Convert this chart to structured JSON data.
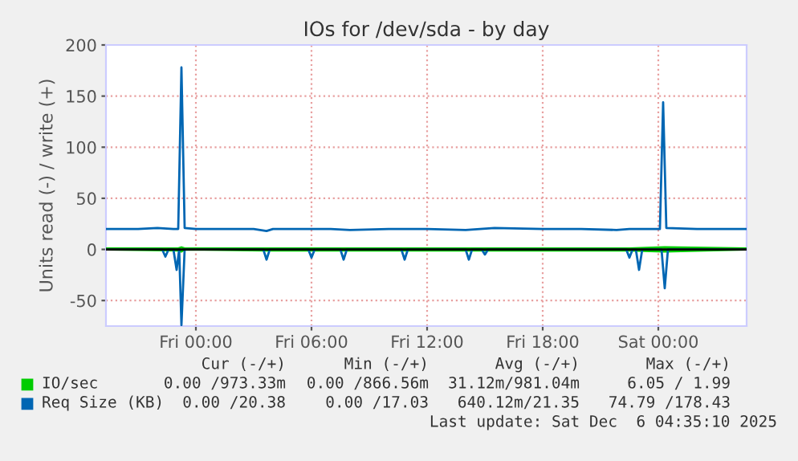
{
  "chart_data": {
    "type": "line",
    "title": "IOs for /dev/sda - by day",
    "ylabel": "Units read (-) / write (+)",
    "xlim": [
      "2025-12-04T19:20",
      "2025-12-06T04:35"
    ],
    "xticks": [
      {
        "value": "2025-12-05T00:00",
        "label": "Fri 00:00"
      },
      {
        "value": "2025-12-05T06:00",
        "label": "Fri 06:00"
      },
      {
        "value": "2025-12-05T12:00",
        "label": "Fri 12:00"
      },
      {
        "value": "2025-12-05T18:00",
        "label": "Fri 18:00"
      },
      {
        "value": "2025-12-06T00:00",
        "label": "Sat 00:00"
      }
    ],
    "ylim": [
      -75,
      200
    ],
    "yticks": [
      -50,
      0,
      50,
      100,
      150,
      200
    ],
    "grid": true,
    "legend": "bottom",
    "ref_lines": [
      {
        "axis": "y",
        "value": 0,
        "color": "#000000"
      }
    ],
    "series": [
      {
        "name": "IO/sec",
        "color": "#00cc00",
        "x": [
          "2025-12-04T19:20",
          "2025-12-04T23:05",
          "2025-12-04T23:15",
          "2025-12-04T23:25",
          "2025-12-05T03:40",
          "2025-12-05T10:50",
          "2025-12-05T22:30",
          "2025-12-06T00:20",
          "2025-12-06T04:35"
        ],
        "values": [
          1,
          1,
          2,
          1,
          1,
          1,
          1,
          2,
          1
        ]
      },
      {
        "color": "#00cc00",
        "x": [
          "2025-12-04T19:20",
          "2025-12-04T23:05",
          "2025-12-04T23:15",
          "2025-12-04T23:25",
          "2025-12-05T03:40",
          "2025-12-05T10:50",
          "2025-12-05T22:30",
          "2025-12-06T00:20",
          "2025-12-06T04:35"
        ],
        "values": [
          0,
          -1,
          -2,
          0,
          -1,
          -1,
          -1,
          -2,
          0
        ]
      },
      {
        "name": "Req Size (KB)",
        "color": "#0066b3",
        "x": [
          "2025-12-04T19:20",
          "2025-12-04T21:00",
          "2025-12-04T22:00",
          "2025-12-04T22:50",
          "2025-12-04T23:05",
          "2025-12-04T23:15",
          "2025-12-04T23:25",
          "2025-12-05T00:00",
          "2025-12-05T03:00",
          "2025-12-05T03:40",
          "2025-12-05T04:00",
          "2025-12-05T07:00",
          "2025-12-05T08:00",
          "2025-12-05T10:00",
          "2025-12-05T12:00",
          "2025-12-05T14:00",
          "2025-12-05T15:30",
          "2025-12-05T18:00",
          "2025-12-05T20:00",
          "2025-12-05T21:50",
          "2025-12-05T22:30",
          "2025-12-06T00:05",
          "2025-12-06T00:15",
          "2025-12-06T00:25",
          "2025-12-06T02:00",
          "2025-12-06T04:35"
        ],
        "values": [
          20,
          20,
          21,
          20,
          20,
          178,
          21,
          20,
          20,
          18,
          20,
          20,
          19,
          20,
          20,
          19,
          21,
          20,
          20,
          19,
          20,
          20,
          144,
          21,
          20,
          20
        ]
      },
      {
        "color": "#0066b3",
        "x": [
          "2025-12-04T19:20",
          "2025-12-04T22:15",
          "2025-12-04T22:25",
          "2025-12-04T22:35",
          "2025-12-04T22:50",
          "2025-12-04T23:00",
          "2025-12-04T23:08",
          "2025-12-04T23:15",
          "2025-12-04T23:25",
          "2025-12-05T03:30",
          "2025-12-05T03:40",
          "2025-12-05T03:50",
          "2025-12-05T05:50",
          "2025-12-05T06:00",
          "2025-12-05T06:10",
          "2025-12-05T07:30",
          "2025-12-05T07:40",
          "2025-12-05T07:50",
          "2025-12-05T10:40",
          "2025-12-05T10:50",
          "2025-12-05T11:00",
          "2025-12-05T14:00",
          "2025-12-05T14:10",
          "2025-12-05T14:20",
          "2025-12-05T14:50",
          "2025-12-05T15:00",
          "2025-12-05T15:10",
          "2025-12-05T22:20",
          "2025-12-05T22:30",
          "2025-12-05T22:40",
          "2025-12-05T22:50",
          "2025-12-05T23:00",
          "2025-12-05T23:10",
          "2025-12-06T00:10",
          "2025-12-06T00:20",
          "2025-12-06T00:30",
          "2025-12-06T04:35"
        ],
        "values": [
          0,
          0,
          -7,
          0,
          0,
          -20,
          0,
          -74,
          0,
          0,
          -10,
          0,
          0,
          -8,
          0,
          0,
          -10,
          0,
          0,
          -10,
          0,
          0,
          -10,
          0,
          0,
          -5,
          0,
          0,
          -8,
          0,
          0,
          -20,
          0,
          0,
          -38,
          0,
          0
        ]
      }
    ],
    "annotations": [
      "Cur (-/+)",
      "Min (-/+)",
      "Avg (-/+)",
      "Max (-/+)",
      "0.00 /973.33m",
      "0.00 /866.56m",
      "31.12m/981.04m",
      "6.05 / 1.99",
      "0.00 /20.38",
      "0.00 /17.03",
      "640.12m/21.35",
      "74.79 /178.43",
      "Last update: Sat Dec  6 04:35:10 2025"
    ]
  }
}
